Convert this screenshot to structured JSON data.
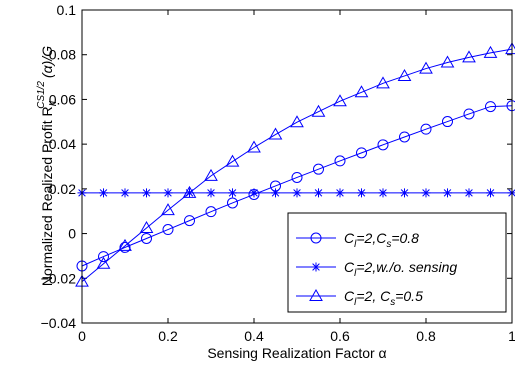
{
  "chart_data": {
    "type": "line",
    "xlabel": "Sensing Realization Factor α",
    "ylabel": {
      "prefix": "Normalized  Realized Profit R",
      "sub": "II",
      "sup": "CS1/2",
      "suffix": "(α)/G"
    },
    "xlim": [
      0,
      1
    ],
    "ylim": [
      -0.04,
      0.1
    ],
    "xticks": [
      0,
      0.2,
      0.4,
      0.6,
      0.8,
      1
    ],
    "xtick_labels": [
      "0",
      "0.2",
      "0.4",
      "0.6",
      "0.8",
      "1"
    ],
    "yticks": [
      -0.04,
      -0.02,
      0,
      0.02,
      0.04,
      0.06,
      0.08,
      0.1
    ],
    "ytick_labels": [
      "−0.04",
      "−0.02",
      "0",
      "0.02",
      "0.04",
      "0.06",
      "0.08",
      "0.1"
    ],
    "grid": false,
    "legend_position": "bottom-right",
    "color": "#0000ff",
    "x": [
      0,
      0.05,
      0.1,
      0.15,
      0.2,
      0.25,
      0.3,
      0.35,
      0.4,
      0.45,
      0.5,
      0.55,
      0.6,
      0.65,
      0.7,
      0.75,
      0.8,
      0.85,
      0.9,
      0.95,
      1.0
    ],
    "series": [
      {
        "marker": "circle",
        "legend": {
          "main": "C",
          "sub1": "l",
          "mid": "=2,C",
          "sub2": "s",
          "tail": "=0.8"
        },
        "values": [
          -0.0145,
          -0.0103,
          -0.0062,
          -0.0022,
          0.0018,
          0.0058,
          0.0098,
          0.0137,
          0.0175,
          0.0213,
          0.0251,
          0.0288,
          0.0325,
          0.0361,
          0.0397,
          0.0432,
          0.0467,
          0.0501,
          0.0535,
          0.0568,
          0.0572
        ]
      },
      {
        "marker": "asterisk",
        "legend": {
          "main": "C",
          "sub1": "l",
          "mid": "=2,w./o. sensing",
          "sub2": "",
          "tail": ""
        },
        "values": [
          0.0182,
          0.0182,
          0.0182,
          0.0182,
          0.0182,
          0.0182,
          0.0182,
          0.0182,
          0.0182,
          0.0182,
          0.0182,
          0.0182,
          0.0182,
          0.0182,
          0.0182,
          0.0182,
          0.0182,
          0.0182,
          0.0182,
          0.0182,
          0.0182
        ]
      },
      {
        "marker": "triangle",
        "legend": {
          "main": "C",
          "sub1": "l",
          "mid": "=2, C",
          "sub2": "s",
          "tail": "=0.5"
        },
        "values": [
          -0.0215,
          -0.0135,
          -0.0055,
          0.0025,
          0.0105,
          0.0182,
          0.0258,
          0.0322,
          0.0385,
          0.0443,
          0.0498,
          0.0545,
          0.0592,
          0.0632,
          0.0672,
          0.0705,
          0.0738,
          0.0765,
          0.0788,
          0.0808,
          0.0825
        ]
      }
    ]
  }
}
